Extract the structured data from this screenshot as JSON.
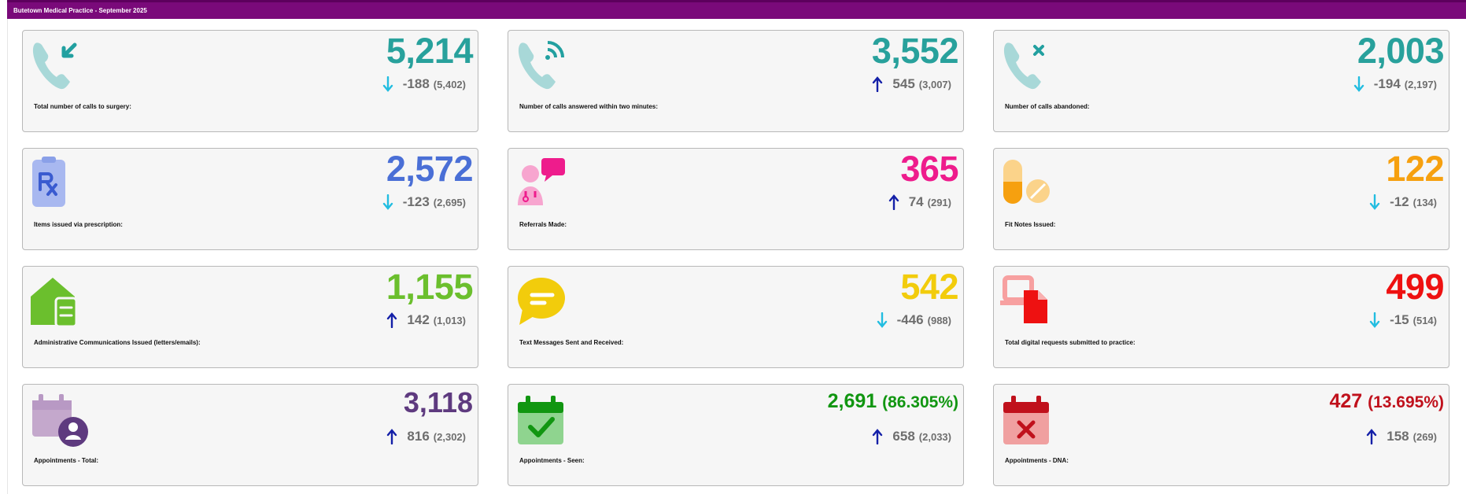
{
  "header": {
    "title": "Butetown Medical Practice - September 2025"
  },
  "cards": [
    {
      "id": "calls-total",
      "label": "Total number of calls to surgery:",
      "value": "5,214",
      "change": "-188",
      "previous": "(5,402)",
      "trend": "down",
      "color": "#28a19c",
      "icon": "phone-incoming-icon"
    },
    {
      "id": "calls-answered",
      "label": "Number of calls answered within two minutes:",
      "value": "3,552",
      "change": "545",
      "previous": "(3,007)",
      "trend": "up",
      "color": "#28a19c",
      "icon": "phone-answered-icon"
    },
    {
      "id": "calls-abandoned",
      "label": "Number of calls abandoned:",
      "value": "2,003",
      "change": "-194",
      "previous": "(2,197)",
      "trend": "down",
      "color": "#28a19c",
      "icon": "phone-missed-icon"
    },
    {
      "id": "prescriptions",
      "label": "Items issued via prescription:",
      "value": "2,572",
      "change": "-123",
      "previous": "(2,695)",
      "trend": "down",
      "color": "#4a6fd6",
      "icon": "prescription-icon"
    },
    {
      "id": "referrals",
      "label": "Referrals Made:",
      "value": "365",
      "change": "74",
      "previous": "(291)",
      "trend": "up",
      "color": "#ee1c8c",
      "icon": "doctor-chat-icon"
    },
    {
      "id": "fit-notes",
      "label": "Fit Notes Issued:",
      "value": "122",
      "change": "-12",
      "previous": "(134)",
      "trend": "down",
      "color": "#f6a00f",
      "icon": "pills-icon"
    },
    {
      "id": "admin-comms",
      "label": "Administrative Communications Issued (letters/emails):",
      "value": "1,155",
      "change": "142",
      "previous": "(1,013)",
      "trend": "up",
      "color": "#6bbf2d",
      "icon": "mail-letter-icon"
    },
    {
      "id": "text-messages",
      "label": "Text Messages Sent and Received:",
      "value": "542",
      "change": "-446",
      "previous": "(988)",
      "trend": "down",
      "color": "#f2cc0c",
      "icon": "chat-bubble-icon"
    },
    {
      "id": "digital-requests",
      "label": "Total digital requests submitted to practice:",
      "value": "499",
      "change": "-15",
      "previous": "(514)",
      "trend": "down",
      "color": "#ee1111",
      "icon": "device-document-icon"
    },
    {
      "id": "appointments-total",
      "label": "Appointments - Total:",
      "value": "3,118",
      "pct": "",
      "change": "816",
      "previous": "(2,302)",
      "trend": "up",
      "color": "#5e3a7f",
      "icon": "calendar-user-icon"
    },
    {
      "id": "appointments-seen",
      "label": "Appointments - Seen:",
      "value": "2,691",
      "pct": "(86.305%)",
      "change": "658",
      "previous": "(2,033)",
      "trend": "up",
      "color": "#119611",
      "icon": "calendar-check-icon"
    },
    {
      "id": "appointments-dna",
      "label": "Appointments - DNA:",
      "value": "427",
      "pct": "(13.695%)",
      "change": "158",
      "previous": "(269)",
      "trend": "up",
      "color": "#c0111c",
      "icon": "calendar-x-icon"
    }
  ],
  "colors": {
    "trend_up": "#1420a8",
    "trend_down": "#22bde0",
    "header_bg": "#7a0a7a"
  }
}
